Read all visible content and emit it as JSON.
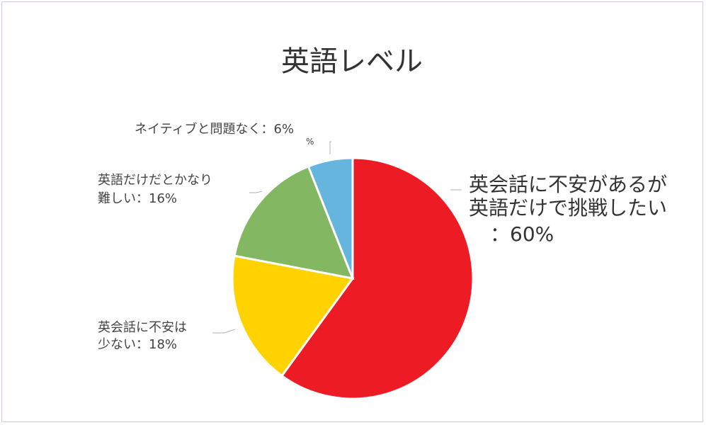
{
  "chart_data": {
    "type": "pie",
    "title": "英語レベル",
    "start_angle_deg": 0,
    "direction": "clockwise",
    "slices": [
      {
        "label_lines": [
          "英会話に不安があるが",
          "英語だけで挑戦したい",
          "：60%"
        ],
        "value": 60,
        "color": "#ed1c24"
      },
      {
        "label_lines": [
          "英会話に不安は",
          "少ない：18%"
        ],
        "value": 18,
        "color": "#ffd200"
      },
      {
        "label_lines": [
          "英語だけだとかなり",
          "難しい：16%"
        ],
        "value": 16,
        "color": "#83b762"
      },
      {
        "label_lines": [
          "ネイティブと問題なく：6%"
        ],
        "value": 6,
        "color": "#66b5de"
      }
    ],
    "stray_label": "%"
  }
}
